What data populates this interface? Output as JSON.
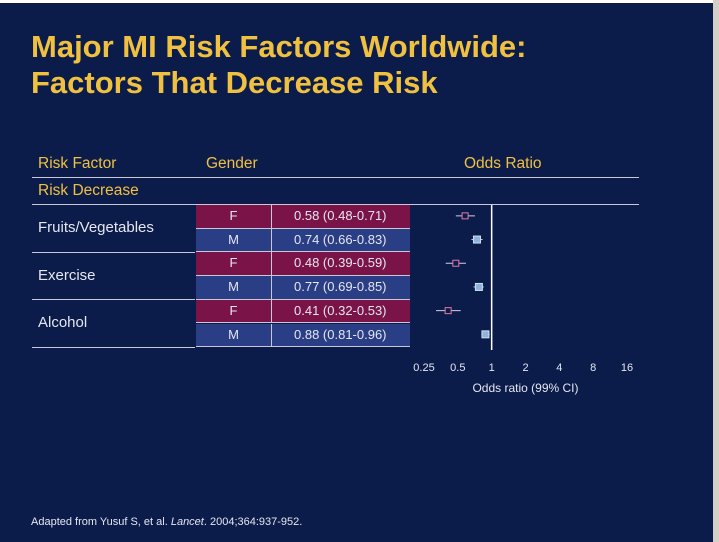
{
  "title_lines": [
    "Major MI Risk Factors Worldwide:",
    "Factors That Decrease Risk"
  ],
  "headers": {
    "risk_factor": "Risk Factor",
    "gender": "Gender",
    "odds_ratio": "Odds Ratio"
  },
  "section_label": "Risk Decrease",
  "factors": [
    "Fruits/Vegetables",
    "Exercise",
    "Alcohol"
  ],
  "colors": {
    "female_row": "#7a1448",
    "male_row": "#2a3e86",
    "title": "#f0c040",
    "background": "#0b1c4a"
  },
  "footnote": {
    "prefix": "Adapted from Yusuf S, et al. ",
    "journal": "Lancet",
    "suffix": ". 2004;364:937-952."
  },
  "chart_data": {
    "type": "scatter",
    "title": "",
    "xlabel": "Odds ratio (99% CI)",
    "x_scale": "log2",
    "xlim": [
      0.25,
      16
    ],
    "x_ticks": [
      "0.25",
      "0.5",
      "1",
      "2",
      "4",
      "8",
      "16"
    ],
    "x_tick_values": [
      0.25,
      0.5,
      1,
      2,
      4,
      8,
      16
    ],
    "reference_line": 1,
    "rows": [
      {
        "factor": "Fruits/Vegetables",
        "gender": "F",
        "or": 0.58,
        "lo": 0.48,
        "hi": 0.71,
        "label": "0.58 (0.48-0.71)"
      },
      {
        "factor": "Fruits/Vegetables",
        "gender": "M",
        "or": 0.74,
        "lo": 0.66,
        "hi": 0.83,
        "label": "0.74 (0.66-0.83)"
      },
      {
        "factor": "Exercise",
        "gender": "F",
        "or": 0.48,
        "lo": 0.39,
        "hi": 0.59,
        "label": "0.48 (0.39-0.59)"
      },
      {
        "factor": "Exercise",
        "gender": "M",
        "or": 0.77,
        "lo": 0.69,
        "hi": 0.85,
        "label": "0.77 (0.69-0.85)"
      },
      {
        "factor": "Alcohol",
        "gender": "F",
        "or": 0.41,
        "lo": 0.32,
        "hi": 0.53,
        "label": "0.41 (0.32-0.53)"
      },
      {
        "factor": "Alcohol",
        "gender": "M",
        "or": 0.88,
        "lo": 0.81,
        "hi": 0.96,
        "label": "0.88 (0.81-0.96)"
      }
    ]
  }
}
